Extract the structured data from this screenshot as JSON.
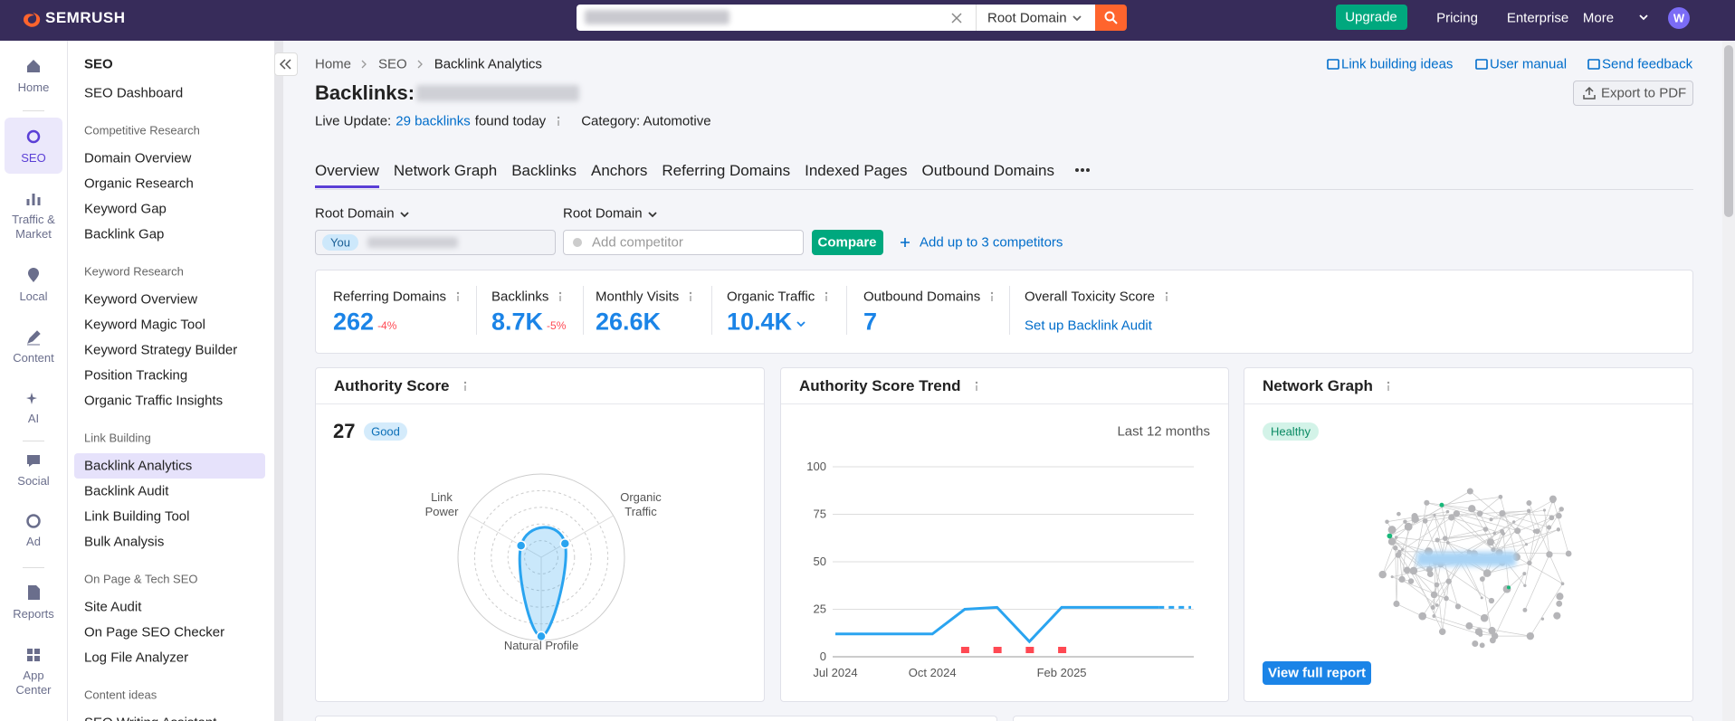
{
  "topbar": {
    "logo": "SEMRUSH",
    "search_scope": "Root Domain",
    "upgrade": "Upgrade",
    "links": [
      "Pricing",
      "Enterprise",
      "More"
    ],
    "avatar": "W"
  },
  "rail": [
    "Home",
    "SEO",
    "Traffic & Market",
    "Local",
    "Content",
    "AI",
    "Social",
    "Ad",
    "Reports",
    "App Center"
  ],
  "sidebar": {
    "title": "SEO",
    "top": "SEO Dashboard",
    "groups": [
      {
        "heading": "Competitive Research",
        "items": [
          "Domain Overview",
          "Organic Research",
          "Keyword Gap",
          "Backlink Gap"
        ]
      },
      {
        "heading": "Keyword Research",
        "items": [
          "Keyword Overview",
          "Keyword Magic Tool",
          "Keyword Strategy Builder",
          "Position Tracking",
          "Organic Traffic Insights"
        ]
      },
      {
        "heading": "Link Building",
        "items": [
          "Backlink Analytics",
          "Backlink Audit",
          "Link Building Tool",
          "Bulk Analysis"
        ]
      },
      {
        "heading": "On Page & Tech SEO",
        "items": [
          "Site Audit",
          "On Page SEO Checker",
          "Log File Analyzer"
        ]
      },
      {
        "heading": "Content ideas",
        "items": [
          "SEO Writing Assistant"
        ]
      }
    ]
  },
  "breadcrumb": [
    "Home",
    "SEO",
    "Backlink Analytics"
  ],
  "header_links": [
    "Link building ideas",
    "User manual",
    "Send feedback"
  ],
  "export": "Export to PDF",
  "title": "Backlinks:",
  "live_update": {
    "prefix": "Live Update:",
    "link": "29 backlinks",
    "suffix": "found today"
  },
  "category": "Category: Automotive",
  "tabs": [
    "Overview",
    "Network Graph",
    "Backlinks",
    "Anchors",
    "Referring Domains",
    "Indexed Pages",
    "Outbound Domains"
  ],
  "compare": {
    "scope_left": "Root Domain",
    "scope_right": "Root Domain",
    "you": "You",
    "placeholder": "Add competitor",
    "button": "Compare",
    "add": "Add up to 3 competitors"
  },
  "metrics": [
    {
      "label": "Referring Domains",
      "value": "262",
      "change": "-4%"
    },
    {
      "label": "Backlinks",
      "value": "8.7K",
      "change": "-5%"
    },
    {
      "label": "Monthly Visits",
      "value": "26.6K"
    },
    {
      "label": "Organic Traffic",
      "value": "10.4K"
    },
    {
      "label": "Outbound Domains",
      "value": "7"
    },
    {
      "label": "Overall Toxicity Score",
      "link": "Set up Backlink Audit"
    }
  ],
  "authority_score": {
    "title": "Authority Score",
    "score": "27",
    "badge": "Good",
    "radar": {
      "axes": [
        "Link Power",
        "Organic Traffic",
        "Natural Profile"
      ],
      "values": [
        28,
        33,
        95
      ],
      "max": 100
    }
  },
  "trend": {
    "type": "line",
    "title": "Authority Score Trend",
    "period": "Last 12 months",
    "x": [
      "Jul 2024",
      null,
      null,
      "Oct 2024",
      null,
      null,
      null,
      "Feb 2025",
      null,
      null,
      null,
      null
    ],
    "values": [
      12,
      12,
      12,
      12,
      25,
      26,
      8,
      26,
      26,
      26,
      26,
      26
    ],
    "ylim": [
      0,
      100
    ],
    "yticks": [
      0,
      25,
      50,
      75,
      100
    ],
    "grid": true,
    "color": "#2aa4f0"
  },
  "network": {
    "title": "Network Graph",
    "badge": "Healthy",
    "button": "View full report"
  }
}
